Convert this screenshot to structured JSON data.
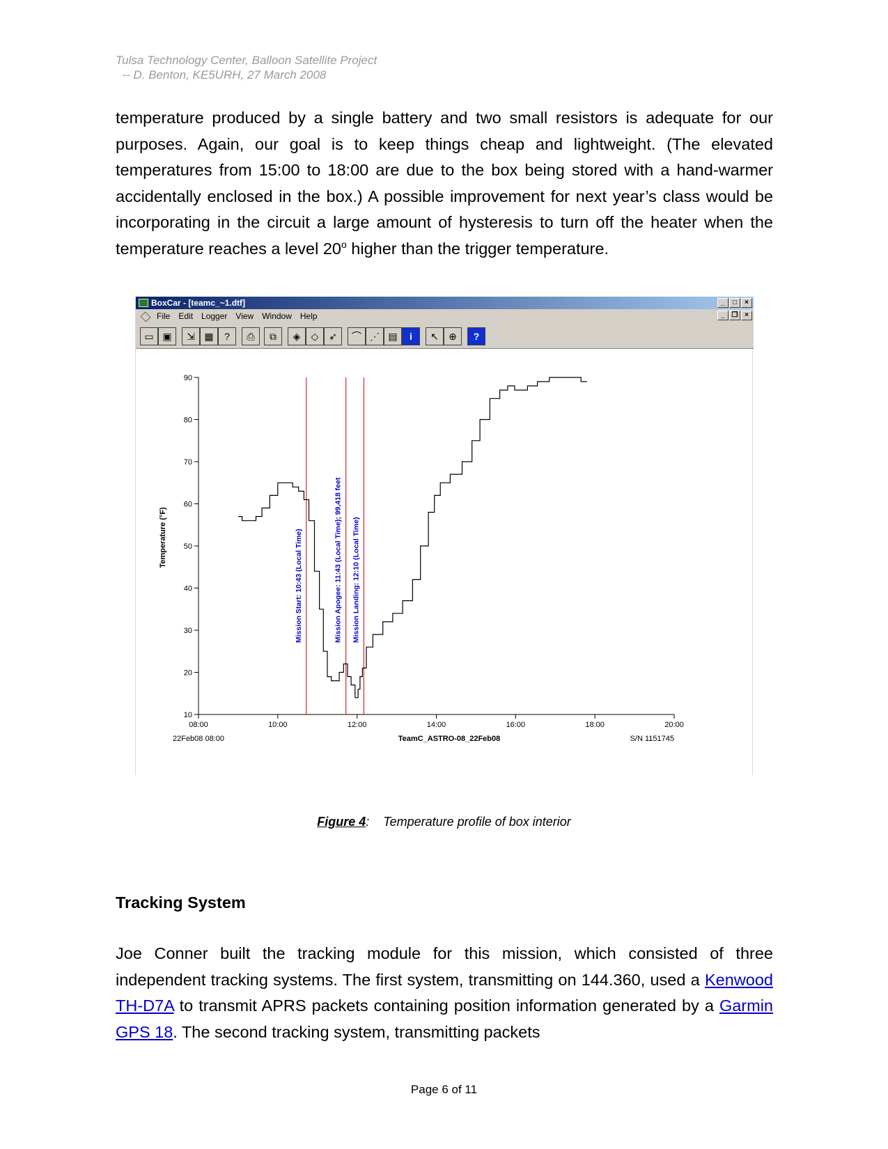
{
  "header": {
    "line1": "Tulsa Technology Center, Balloon Satellite Project",
    "line2": "  -- D. Benton, KE5URH, 27 March 2008"
  },
  "para1": {
    "text": "temperature produced by a single battery and two small resistors is adequate for our purposes.   Again, our goal is to keep things cheap and lightweight.   (The elevated temperatures from 15:00 to 18:00 are due to the box being stored with a hand-warmer accidentally enclosed in the box.)   A possible improvement for next year’s class would be incorporating in the circuit a large amount of hysteresis to turn off the heater when the temperature reaches a level 20",
    "sup": "o",
    "tail": " higher than the trigger temperature."
  },
  "window": {
    "title": "BoxCar - [teamc_~1.dtf]",
    "menu": [
      "File",
      "Edit",
      "Logger",
      "View",
      "Window",
      "Help"
    ],
    "toolbar_icons": [
      "open-icon",
      "save-icon",
      "launch-icon",
      "logger-icon",
      "help-context-icon",
      "print-icon",
      "copy-icon",
      "readout-icon",
      "stop-icon",
      "relaunch-icon",
      "line-plot-icon",
      "points-plot-icon",
      "grid-icon",
      "info-icon",
      "pointer-icon",
      "zoom-icon",
      "help-icon"
    ]
  },
  "chart_data": {
    "type": "line",
    "ylabel": "Temperature (°F)",
    "xlabel": "TeamC_ASTRO-08_22Feb08",
    "serial": "S/N 1151745",
    "xstart_label": "22Feb08 08:00",
    "ylim": [
      10,
      90
    ],
    "xlim": [
      "08:00",
      "20:00"
    ],
    "yticks": [
      "10",
      "20",
      "30",
      "40",
      "50",
      "60",
      "70",
      "80",
      "90"
    ],
    "xticks": [
      "08:00",
      "10:00",
      "12:00",
      "14:00",
      "16:00",
      "18:00",
      "20:00"
    ],
    "series": [
      {
        "x": [
          9.0,
          9.2,
          9.4,
          9.5,
          9.7,
          9.9,
          10.1,
          10.3,
          10.45,
          10.6,
          10.72,
          10.85,
          11.0,
          11.1,
          11.2,
          11.3,
          11.4,
          11.5,
          11.6,
          11.72,
          11.8,
          11.9,
          12.0,
          12.05,
          12.1,
          12.17,
          12.3,
          12.5,
          12.8,
          13.0,
          13.3,
          13.5,
          13.7,
          13.9,
          14.0,
          14.2,
          14.5,
          14.8,
          15.0,
          15.2,
          15.5,
          15.7,
          15.9,
          16.05,
          16.2,
          16.4,
          16.7,
          17.0,
          17.5,
          17.8
        ],
        "y": [
          57,
          56,
          56,
          57,
          59,
          62,
          65,
          65,
          64,
          63,
          61,
          56,
          44,
          35,
          25,
          19,
          18,
          18,
          20,
          22,
          19,
          17,
          14,
          16,
          19,
          21,
          26,
          29,
          32,
          34,
          37,
          42,
          50,
          58,
          62,
          65,
          67,
          70,
          75,
          80,
          85,
          87,
          88,
          87,
          87,
          88,
          89,
          90,
          90,
          89
        ]
      }
    ],
    "markers": [
      {
        "x": 10.72,
        "label": "Mission Start:   10:43 (Local Time)"
      },
      {
        "x": 11.72,
        "label": "Mission Apogee:   11:43 (Local Time);   99,418 feet"
      },
      {
        "x": 12.17,
        "label": "Mission Landing:   12:10 (Local Time)"
      }
    ],
    "line_color": "#000000",
    "marker_color": "#cc0000",
    "marker_text_color": "#0000cc"
  },
  "caption": {
    "label": "Figure 4",
    "sep": ":",
    "text": "Temperature profile of box interior"
  },
  "heading": "Tracking System",
  "para2": {
    "t1": "Joe Conner built the tracking module for this mission, which consisted of three independent tracking systems.   The first system, transmitting on 144.360, used a ",
    "link1": "Kenwood TH-D7A",
    "t2": " to transmit APRS packets containing position information generated by a ",
    "link2": "Garmin GPS 18",
    "t3": ".   The second tracking system, transmitting packets"
  },
  "footer": "Page 6 of 11"
}
